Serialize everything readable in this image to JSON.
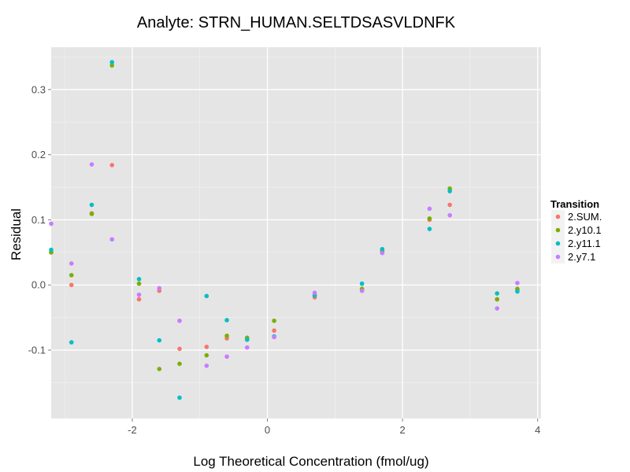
{
  "chart_data": {
    "type": "scatter",
    "title": "Analyte: STRN_HUMAN.SELTDSASVLDNFK",
    "xlabel": "Log Theoretical Concentration (fmol/ug)",
    "ylabel": "Residual",
    "xlim": [
      -3.2,
      4.05
    ],
    "ylim": [
      -0.205,
      0.365
    ],
    "x_ticks": [
      -2,
      0,
      2,
      4
    ],
    "x_tick_labels": [
      "-2",
      "0",
      "2",
      "4"
    ],
    "y_ticks": [
      -0.1,
      0.0,
      0.1,
      0.2,
      0.3
    ],
    "y_tick_labels": [
      "-0.1",
      "0.0",
      "0.1",
      "0.2",
      "0.3"
    ],
    "grid": true,
    "legend_title": "Transition",
    "legend_position": "right",
    "series": [
      {
        "name": "2.SUM.",
        "color": "#F8766D",
        "points": [
          [
            -3.2,
            0.05
          ],
          [
            -2.9,
            0.0
          ],
          [
            -2.6,
            0.11
          ],
          [
            -2.3,
            0.184
          ],
          [
            -1.9,
            -0.022
          ],
          [
            -1.6,
            -0.009
          ],
          [
            -1.3,
            -0.098
          ],
          [
            -0.9,
            -0.095
          ],
          [
            -0.6,
            -0.082
          ],
          [
            -0.3,
            -0.084
          ],
          [
            0.1,
            -0.07
          ],
          [
            0.7,
            -0.019
          ],
          [
            1.4,
            -0.007
          ],
          [
            1.7,
            0.05
          ],
          [
            2.4,
            0.1
          ],
          [
            2.7,
            0.123
          ],
          [
            3.4,
            -0.022
          ],
          [
            3.7,
            -0.007
          ]
        ]
      },
      {
        "name": "2.y10.1",
        "color": "#7CAE00",
        "points": [
          [
            -3.2,
            0.05
          ],
          [
            -2.9,
            0.015
          ],
          [
            -2.6,
            0.109
          ],
          [
            -2.3,
            0.337
          ],
          [
            -1.9,
            0.002
          ],
          [
            -1.6,
            -0.129
          ],
          [
            -1.3,
            -0.121
          ],
          [
            -0.9,
            -0.108
          ],
          [
            -0.6,
            -0.078
          ],
          [
            -0.3,
            -0.081
          ],
          [
            0.1,
            -0.055
          ],
          [
            0.7,
            -0.016
          ],
          [
            1.4,
            -0.006
          ],
          [
            1.7,
            0.052
          ],
          [
            2.4,
            0.102
          ],
          [
            2.7,
            0.148
          ],
          [
            3.4,
            -0.022
          ],
          [
            3.7,
            -0.006
          ]
        ]
      },
      {
        "name": "2.y11.1",
        "color": "#00BFC4",
        "points": [
          [
            -3.2,
            0.054
          ],
          [
            -2.9,
            -0.088
          ],
          [
            -2.6,
            0.123
          ],
          [
            -2.3,
            0.342
          ],
          [
            -1.9,
            0.009
          ],
          [
            -1.6,
            -0.085
          ],
          [
            -1.3,
            -0.173
          ],
          [
            -0.9,
            -0.017
          ],
          [
            -0.6,
            -0.054
          ],
          [
            -0.3,
            -0.084
          ],
          [
            0.1,
            -0.079
          ],
          [
            0.7,
            -0.016
          ],
          [
            1.4,
            0.002
          ],
          [
            1.7,
            0.055
          ],
          [
            2.4,
            0.086
          ],
          [
            2.7,
            0.144
          ],
          [
            3.4,
            -0.013
          ],
          [
            3.7,
            -0.01
          ]
        ]
      },
      {
        "name": "2.y7.1",
        "color": "#C77CFF",
        "points": [
          [
            -3.2,
            0.094
          ],
          [
            -2.9,
            0.033
          ],
          [
            -2.6,
            0.185
          ],
          [
            -2.3,
            0.07
          ],
          [
            -1.9,
            -0.015
          ],
          [
            -1.6,
            -0.005
          ],
          [
            -1.3,
            -0.055
          ],
          [
            -0.9,
            -0.124
          ],
          [
            -0.6,
            -0.11
          ],
          [
            -0.3,
            -0.096
          ],
          [
            0.1,
            -0.08
          ],
          [
            0.7,
            -0.012
          ],
          [
            1.4,
            -0.009
          ],
          [
            1.7,
            0.049
          ],
          [
            2.4,
            0.117
          ],
          [
            2.7,
            0.107
          ],
          [
            3.4,
            -0.036
          ],
          [
            3.7,
            0.003
          ]
        ]
      }
    ]
  }
}
